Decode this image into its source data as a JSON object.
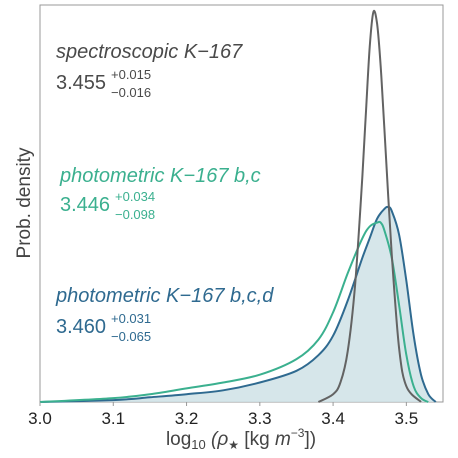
{
  "chart_data": {
    "type": "area",
    "xlabel_main": "log",
    "xlabel_sub": "10",
    "xlabel_rest": " (ρ",
    "xlabel_star": "★",
    "xlabel_units": " [kg ",
    "xlabel_m": "m",
    "xlabel_exp": "−3",
    "xlabel_end": "])",
    "ylabel": "Prob. density",
    "xlim": [
      3.0,
      3.55
    ],
    "xticks": [
      "3.0",
      "3.1",
      "3.2",
      "3.3",
      "3.4",
      "3.5"
    ],
    "xtick_values": [
      3.0,
      3.1,
      3.2,
      3.3,
      3.4,
      3.5
    ],
    "grid": false,
    "series": [
      {
        "name": "spectroscopic K−167",
        "median": "3.455",
        "plus": "+0.015",
        "minus": "−0.016",
        "color": "#636363",
        "peak": 1.0,
        "x": [
          3.38,
          3.4,
          3.41,
          3.42,
          3.43,
          3.44,
          3.445,
          3.45,
          3.455,
          3.46,
          3.465,
          3.47,
          3.48,
          3.49,
          3.5,
          3.52
        ],
        "y": [
          0.0,
          0.02,
          0.05,
          0.13,
          0.3,
          0.58,
          0.75,
          0.91,
          1.0,
          0.97,
          0.86,
          0.7,
          0.38,
          0.14,
          0.04,
          0.0
        ]
      },
      {
        "name": "photometric K−167 b,c",
        "median": "3.446",
        "plus": "+0.034",
        "minus": "−0.098",
        "color": "#3bb08f",
        "peak": 0.46,
        "x": [
          3.0,
          3.1,
          3.15,
          3.2,
          3.25,
          3.3,
          3.35,
          3.38,
          3.4,
          3.42,
          3.44,
          3.45,
          3.46,
          3.465,
          3.47,
          3.48,
          3.49,
          3.5,
          3.51,
          3.52,
          3.53
        ],
        "y": [
          0.0,
          0.01,
          0.02,
          0.035,
          0.05,
          0.07,
          0.11,
          0.16,
          0.23,
          0.33,
          0.42,
          0.45,
          0.46,
          0.46,
          0.44,
          0.37,
          0.25,
          0.12,
          0.04,
          0.01,
          0.0
        ]
      },
      {
        "name": "photometric K−167 b,c,d",
        "median": "3.460",
        "plus": "+0.031",
        "minus": "−0.065",
        "color": "#2f6a90",
        "fill": "#cfe2e6",
        "peak": 0.5,
        "x": [
          3.0,
          3.1,
          3.15,
          3.2,
          3.25,
          3.3,
          3.35,
          3.38,
          3.4,
          3.42,
          3.44,
          3.45,
          3.46,
          3.47,
          3.475,
          3.48,
          3.49,
          3.5,
          3.51,
          3.52,
          3.53,
          3.54
        ],
        "y": [
          0.0,
          0.005,
          0.012,
          0.02,
          0.03,
          0.05,
          0.08,
          0.12,
          0.17,
          0.26,
          0.37,
          0.42,
          0.47,
          0.495,
          0.5,
          0.49,
          0.43,
          0.31,
          0.17,
          0.07,
          0.02,
          0.0
        ]
      }
    ]
  }
}
